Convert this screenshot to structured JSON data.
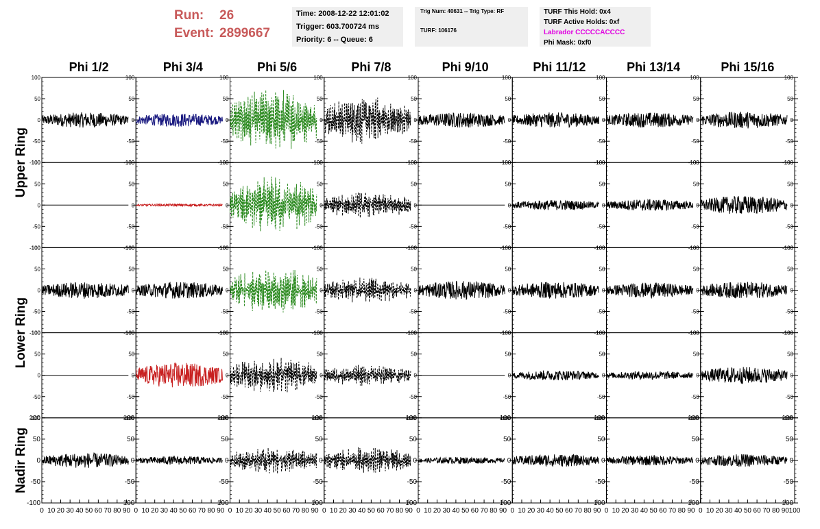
{
  "header": {
    "run_label": "Run:",
    "run_value": "26",
    "event_label": "Event:",
    "event_value": "2899667",
    "color": "#c85a5a"
  },
  "info_time": {
    "time": "Time: 2008-12-22 12:01:02",
    "trigger": "Trigger: 603.700724 ms",
    "priority": "Priority: 6 -- Queue: 6"
  },
  "info_trig": {
    "trig": "Trig Num: 40631 -- Trig Type: RF",
    "turf": "TURF: 106176"
  },
  "info_turf": {
    "this_hold": "TURF This Hold: 0x4",
    "active_holds": "TURF Active Holds: 0xf",
    "labrador": "Labrador CCCCCACCCC",
    "phi_mask": "Phi Mask: 0xf0",
    "labrador_color": "#e000e0"
  },
  "chart_data": {
    "type": "line",
    "columns": [
      "Phi 1/2",
      "Phi 3/4",
      "Phi 5/6",
      "Phi 7/8",
      "Phi 9/10",
      "Phi 11/12",
      "Phi 13/14",
      "Phi 15/16"
    ],
    "ring_labels": [
      "Upper Ring",
      "Lower Ring",
      "Nadir Ring"
    ],
    "ring_rows": [
      [
        0,
        1
      ],
      [
        2,
        3
      ],
      [
        4,
        4
      ]
    ],
    "xlim": [
      0,
      100
    ],
    "ylim": [
      -100,
      100
    ],
    "x_ticks": [
      0,
      10,
      20,
      30,
      40,
      50,
      60,
      70,
      80,
      90,
      100
    ],
    "x_tick_labels": [
      "0",
      "10",
      "20",
      "30",
      "40",
      "50",
      "60",
      "70",
      "80",
      "90",
      "100"
    ],
    "y_ticks": [
      100,
      50,
      0,
      -50,
      -100
    ],
    "y_tick_labels": [
      "100",
      "50",
      "0",
      "-50",
      "-100"
    ],
    "trace_x_range": [
      0,
      92
    ],
    "colors": {
      "black": "#000000",
      "blue": "#1a1a80",
      "green": "#2b8a1f",
      "red": "#c82020"
    },
    "panels": [
      [
        {
          "c": "black",
          "a": 18,
          "d": false
        },
        {
          "c": "blue",
          "a": 16,
          "d": false
        },
        {
          "c": "green",
          "a": 60,
          "d": true
        },
        {
          "c": "black",
          "a": 45,
          "d": true
        },
        {
          "c": "black",
          "a": 18,
          "d": false
        },
        {
          "c": "black",
          "a": 18,
          "d": false
        },
        {
          "c": "black",
          "a": 18,
          "d": false
        },
        {
          "c": "black",
          "a": 20,
          "d": false
        }
      ],
      [
        {
          "c": "black",
          "a": 0,
          "d": false
        },
        {
          "c": "red",
          "a": 3,
          "d": false
        },
        {
          "c": "green",
          "a": 55,
          "d": true
        },
        {
          "c": "black",
          "a": 25,
          "d": true
        },
        {
          "c": "black",
          "a": 0,
          "d": false
        },
        {
          "c": "black",
          "a": 12,
          "d": false
        },
        {
          "c": "black",
          "a": 14,
          "d": false
        },
        {
          "c": "black",
          "a": 22,
          "d": false
        }
      ],
      [
        {
          "c": "black",
          "a": 20,
          "d": false
        },
        {
          "c": "black",
          "a": 20,
          "d": false
        },
        {
          "c": "green",
          "a": 45,
          "d": true
        },
        {
          "c": "black",
          "a": 25,
          "d": true
        },
        {
          "c": "black",
          "a": 22,
          "d": false
        },
        {
          "c": "black",
          "a": 20,
          "d": false
        },
        {
          "c": "black",
          "a": 18,
          "d": false
        },
        {
          "c": "black",
          "a": 20,
          "d": false
        }
      ],
      [
        {
          "c": "black",
          "a": 0,
          "d": false
        },
        {
          "c": "red",
          "a": 30,
          "d": false
        },
        {
          "c": "black",
          "a": 35,
          "d": true
        },
        {
          "c": "black",
          "a": 20,
          "d": true
        },
        {
          "c": "black",
          "a": 0,
          "d": false
        },
        {
          "c": "black",
          "a": 12,
          "d": false
        },
        {
          "c": "black",
          "a": 10,
          "d": false
        },
        {
          "c": "black",
          "a": 20,
          "d": false
        }
      ],
      [
        {
          "c": "black",
          "a": 18,
          "d": false
        },
        {
          "c": "black",
          "a": 10,
          "d": false
        },
        {
          "c": "black",
          "a": 25,
          "d": true
        },
        {
          "c": "black",
          "a": 25,
          "d": true
        },
        {
          "c": "black",
          "a": 8,
          "d": false
        },
        {
          "c": "black",
          "a": 15,
          "d": false
        },
        {
          "c": "black",
          "a": 12,
          "d": false
        },
        {
          "c": "black",
          "a": 15,
          "d": false
        }
      ]
    ]
  }
}
